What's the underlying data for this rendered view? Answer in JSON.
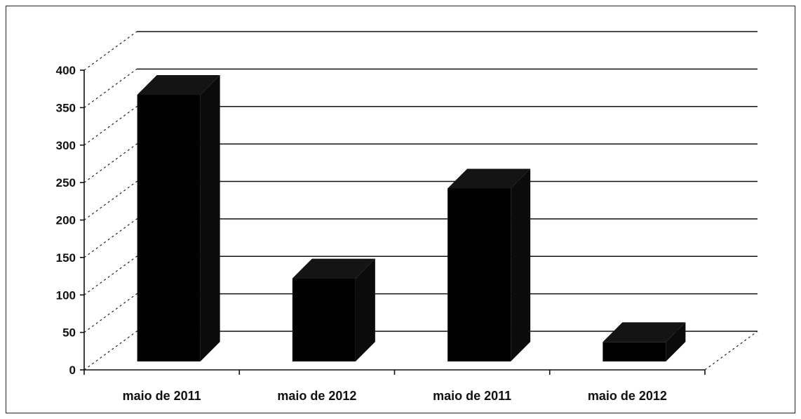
{
  "chart_data": {
    "type": "bar",
    "style": "3d-column",
    "title": "",
    "xlabel": "",
    "ylabel": "",
    "categories": [
      "maio de 2011",
      "maio de 2012",
      "maio de 2011",
      "maio de 2012"
    ],
    "values": [
      370,
      125,
      245,
      40
    ],
    "ylim": [
      0,
      400
    ],
    "yticks": [
      0,
      50,
      100,
      150,
      200,
      250,
      300,
      350,
      400
    ],
    "grid": true,
    "legend": "none",
    "colors": {
      "bar": "#000000",
      "grid": "#111111",
      "background": "#ffffff"
    }
  }
}
